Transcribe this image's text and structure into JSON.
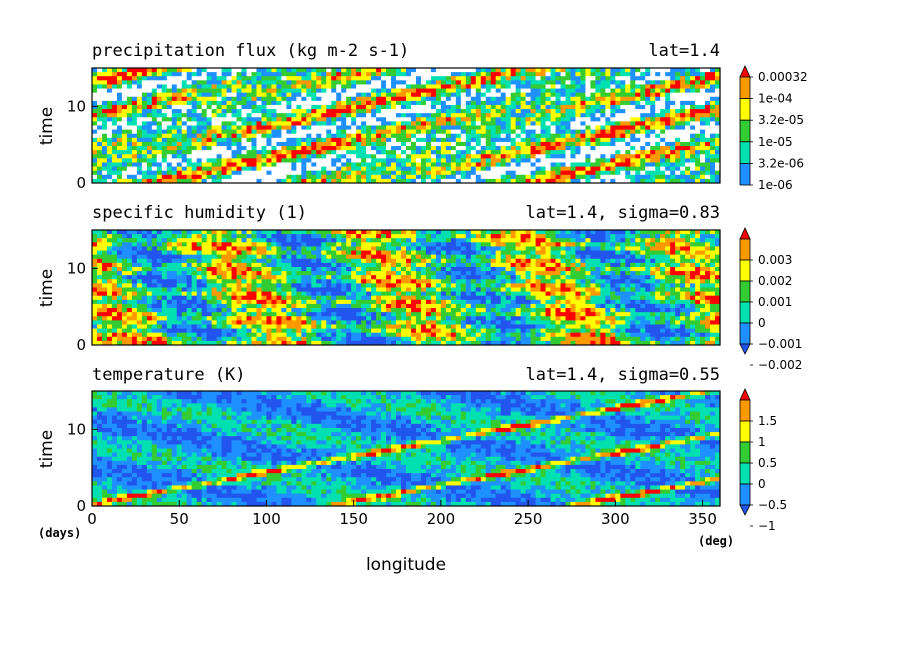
{
  "chart_data": [
    {
      "type": "heatmap",
      "title": "precipitation flux (kg m-2 s-1)",
      "annotation": "lat=1.4",
      "ylabel": "time",
      "yticks": [
        0,
        10
      ],
      "ylim": [
        0,
        15
      ],
      "xlim": [
        0,
        360
      ],
      "levels": [
        "0.00032",
        "1e-04",
        "3.2e-05",
        "1e-05",
        "3.2e-06",
        "1e-06"
      ],
      "colors": [
        "#ff0000",
        "#ff9900",
        "#ffff00",
        "#33cc33",
        "#00e0b0",
        "#1e90ff"
      ],
      "colorbar_extend": "max"
    },
    {
      "type": "heatmap",
      "title": "specific humidity (1)",
      "annotation": "lat=1.4, sigma=0.83",
      "ylabel": "time",
      "yticks": [
        0,
        10
      ],
      "ylim": [
        0,
        15
      ],
      "xlim": [
        0,
        360
      ],
      "levels": [
        "0.003",
        "0.002",
        "0.001",
        "0",
        "−0.001",
        "−0.002"
      ],
      "colors": [
        "#ff0000",
        "#ff9900",
        "#ffff00",
        "#33cc33",
        "#00e0b0",
        "#1e90ff",
        "#2255ee"
      ],
      "colorbar_extend": "both"
    },
    {
      "type": "heatmap",
      "title": "temperature (K)",
      "annotation": "lat=1.4, sigma=0.55",
      "ylabel": "time",
      "yticks": [
        0,
        10
      ],
      "ylim": [
        0,
        15
      ],
      "xlim": [
        0,
        360
      ],
      "levels": [
        "1.5",
        "1",
        "0.5",
        "0",
        "−0.5",
        "−1"
      ],
      "colors": [
        "#ff0000",
        "#ff9900",
        "#ffff00",
        "#33cc33",
        "#00e0b0",
        "#1e90ff",
        "#2255ee"
      ],
      "colorbar_extend": "both"
    }
  ],
  "axes": {
    "xlabel": "longitude",
    "xticks": [
      "0",
      "50",
      "100",
      "150",
      "200",
      "250",
      "300",
      "350"
    ],
    "x_unit": "(deg)",
    "y_unit": "(days)"
  }
}
